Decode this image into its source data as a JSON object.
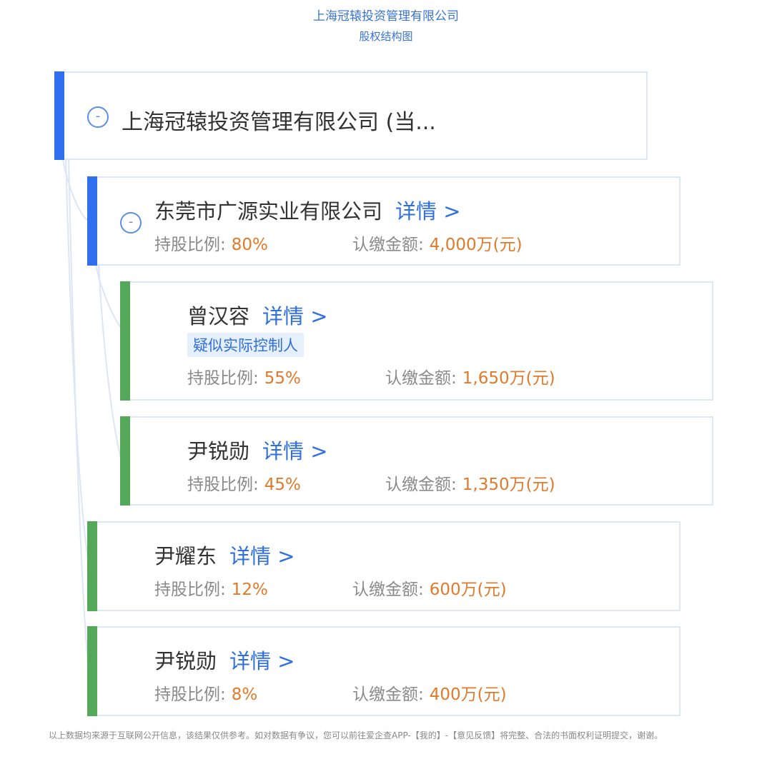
{
  "header": {
    "company": "上海冠辕投资管理有限公司",
    "subtitle": "股权结构图"
  },
  "root": {
    "name": "上海冠辕投资管理有限公司 (当...",
    "toggle": "-"
  },
  "labels": {
    "ratio": "持股比例:",
    "amount": "认缴金额:",
    "detail": "详情 >"
  },
  "nodes": [
    {
      "name": "东莞市广源实业有限公司",
      "ratio": "80%",
      "amount": "4,000万(元)",
      "toggle": "-"
    },
    {
      "name": "曾汉容",
      "badge": "疑似实际控制人",
      "ratio": "55%",
      "amount": "1,650万(元)"
    },
    {
      "name": "尹锐勋",
      "ratio": "45%",
      "amount": "1,350万(元)"
    },
    {
      "name": "尹耀东",
      "ratio": "12%",
      "amount": "600万(元)"
    },
    {
      "name": "尹锐勋",
      "ratio": "8%",
      "amount": "400万(元)"
    }
  ],
  "footer": "以上数据均来源于互联网公开信息，该结果仅供参考。如对数据有争议，您可以前往爱企查APP-【我的】-【意见反馈】将完整、合法的书面权利证明提交，谢谢。",
  "colors": {
    "company_bar": "#2f6ff0",
    "person_bar": "#55a85a",
    "detail": "#2f6fe0",
    "value": "#e07a2a"
  }
}
